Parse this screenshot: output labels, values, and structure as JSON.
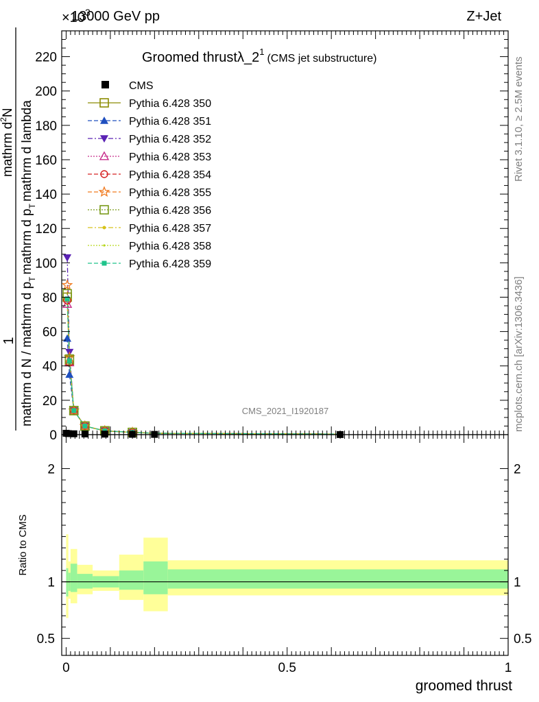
{
  "header": {
    "left": "13000 GeV pp",
    "right": "Z+Jet",
    "exponent": "×10",
    "exponent_power": "3"
  },
  "side_labels": {
    "rivet": "Rivet 3.1.10, ≥ 2.5M events",
    "mcplots": "mcplots.cern.ch [arXiv:1306.3436]"
  },
  "chart_data": [
    {
      "type": "line",
      "title": "Groomed thrustλ_2",
      "title_superscript": "1",
      "subtitle": "(CMS jet substructure)",
      "watermark": "CMS_2021_I1920187",
      "ylabel": {
        "lead": "1",
        "frac_numerator": "mathrm d N / mathrm d p",
        "frac_numerator_sub": "T",
        "frac_numerator_tail": "mathrm d p",
        "frac_numerator_sub2": "T",
        "frac_numerator_tail2": "mathrm d lambda",
        "frac_denominator": "mathrm d",
        "frac_denominator_sup": "2",
        "frac_denominator_tail": "N"
      },
      "ylim": [
        0,
        235
      ],
      "yticks": [
        "0",
        "20",
        "40",
        "60",
        "80",
        "100",
        "120",
        "140",
        "160",
        "180",
        "200",
        "220"
      ],
      "xlim": [
        -0.01,
        1.0
      ],
      "legend_position": "top-left",
      "cms": {
        "name": "CMS",
        "x": [
          0.0,
          0.005,
          0.0175,
          0.0425,
          0.0875,
          0.15,
          0.2,
          0.62
        ],
        "y": [
          0.8,
          0.6,
          0.5,
          0.4,
          0.3,
          0.2,
          0.15,
          0.05
        ]
      },
      "x": [
        0.0025,
        0.0075,
        0.0175,
        0.0425,
        0.0875,
        0.15,
        0.2,
        0.62
      ],
      "series": [
        {
          "name": "Pythia 6.428 350",
          "color": "#8b8b00",
          "style": "solid",
          "marker": "square-open",
          "values": [
            80,
            43,
            14,
            5,
            2.2,
            1.3,
            0.8,
            0.3
          ]
        },
        {
          "name": "Pythia 6.428 351",
          "color": "#1f4fbf",
          "style": "dash",
          "marker": "triangle-up",
          "values": [
            56,
            35,
            14,
            5,
            2.2,
            1.3,
            0.8,
            0.3
          ]
        },
        {
          "name": "Pythia 6.428 352",
          "color": "#5a22b4",
          "style": "dashdot",
          "marker": "triangle-down",
          "values": [
            103,
            48,
            14,
            5,
            2.2,
            1.3,
            0.8,
            0.3
          ]
        },
        {
          "name": "Pythia 6.428 353",
          "color": "#c72c8b",
          "style": "dot",
          "marker": "triangle-up-open",
          "values": [
            76,
            42,
            14,
            5,
            2.2,
            1.3,
            0.8,
            0.3
          ]
        },
        {
          "name": "Pythia 6.428 354",
          "color": "#d62020",
          "style": "dash",
          "marker": "circle-open",
          "values": [
            78,
            42,
            14,
            5,
            2.2,
            1.3,
            0.8,
            0.3
          ]
        },
        {
          "name": "Pythia 6.428 355",
          "color": "#f07a1f",
          "style": "dash",
          "marker": "star-open",
          "values": [
            87,
            45,
            14,
            5,
            2.2,
            1.3,
            0.8,
            0.3
          ]
        },
        {
          "name": "Pythia 6.428 356",
          "color": "#7a9a1a",
          "style": "dot",
          "marker": "square-open",
          "values": [
            82,
            44,
            14,
            5,
            2.2,
            1.3,
            0.8,
            0.3
          ]
        },
        {
          "name": "Pythia 6.428 357",
          "color": "#d6c21a",
          "style": "dashdot",
          "marker": "dot",
          "values": [
            79,
            43,
            14,
            5,
            2.2,
            1.3,
            0.8,
            0.3
          ]
        },
        {
          "name": "Pythia 6.428 358",
          "color": "#b6d61a",
          "style": "dot",
          "marker": "dot-small",
          "values": [
            78,
            43,
            14,
            5,
            2.2,
            1.3,
            0.8,
            0.3
          ]
        },
        {
          "name": "Pythia 6.428 359",
          "color": "#1fc48b",
          "style": "dash",
          "marker": "square-small",
          "values": [
            79,
            43,
            14,
            5,
            2.2,
            1.3,
            0.8,
            0.3
          ]
        }
      ]
    },
    {
      "type": "area",
      "ylabel": "Ratio to CMS",
      "xlabel": "groomed thrust",
      "ylim": [
        0.35,
        2.3
      ],
      "yticks": [
        "0.5",
        "1",
        "2"
      ],
      "xticks": [
        "0",
        "0.5",
        "1"
      ],
      "reference_line": 1.0,
      "bins": [
        {
          "lo": 0.0,
          "hi": 0.005,
          "inner": [
            0.87,
            1.12
          ],
          "outer": [
            0.68,
            1.42
          ]
        },
        {
          "lo": 0.005,
          "hi": 0.01,
          "inner": [
            0.92,
            1.08
          ],
          "outer": [
            0.85,
            1.18
          ]
        },
        {
          "lo": 0.01,
          "hi": 0.025,
          "inner": [
            0.91,
            1.16
          ],
          "outer": [
            0.81,
            1.29
          ]
        },
        {
          "lo": 0.025,
          "hi": 0.06,
          "inner": [
            0.94,
            1.07
          ],
          "outer": [
            0.89,
            1.15
          ]
        },
        {
          "lo": 0.06,
          "hi": 0.12,
          "inner": [
            0.95,
            1.05
          ],
          "outer": [
            0.92,
            1.1
          ]
        },
        {
          "lo": 0.12,
          "hi": 0.175,
          "inner": [
            0.93,
            1.1
          ],
          "outer": [
            0.84,
            1.24
          ]
        },
        {
          "lo": 0.175,
          "hi": 0.23,
          "inner": [
            0.89,
            1.18
          ],
          "outer": [
            0.74,
            1.39
          ]
        },
        {
          "lo": 0.23,
          "hi": 1.0,
          "inner": [
            0.94,
            1.11
          ],
          "outer": [
            0.88,
            1.19
          ]
        }
      ],
      "colors": {
        "inner": "#99f599",
        "outer": "#ffff99"
      }
    }
  ]
}
